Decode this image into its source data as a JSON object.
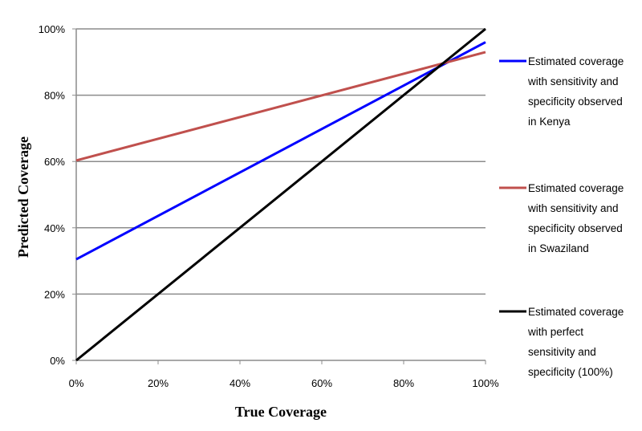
{
  "chart_data": {
    "type": "line",
    "xlabel": "True Coverage",
    "ylabel": "Predicted Coverage",
    "xlim": [
      0,
      100
    ],
    "ylim": [
      0,
      100
    ],
    "x_ticks": [
      "0%",
      "20%",
      "40%",
      "60%",
      "80%",
      "100%"
    ],
    "y_ticks": [
      "0%",
      "20%",
      "40%",
      "60%",
      "80%",
      "100%"
    ],
    "grid": "horizontal",
    "legend_position": "right",
    "series": [
      {
        "name": "Estimated coverage with sensitivity and specificity observed in Kenya",
        "legend_lines": [
          "Estimated coverage",
          "with sensitivity and",
          "specificity observed",
          "in Kenya"
        ],
        "color": "#0000ff",
        "x": [
          0,
          100
        ],
        "y": [
          30.5,
          96
        ]
      },
      {
        "name": "Estimated coverage with sensitivity and specificity observed in Swaziland",
        "legend_lines": [
          "Estimated coverage",
          "with sensitivity and",
          "specificity observed",
          "in Swaziland"
        ],
        "color": "#c0504d",
        "x": [
          0,
          100
        ],
        "y": [
          60.3,
          93
        ]
      },
      {
        "name": "Estimated coverage with perfect sensitivity and specificity (100%)",
        "legend_lines": [
          "Estimated coverage",
          "with perfect",
          "sensitivity and",
          "specificity (100%)"
        ],
        "color": "#000000",
        "x": [
          0,
          100
        ],
        "y": [
          0,
          100
        ]
      }
    ]
  }
}
